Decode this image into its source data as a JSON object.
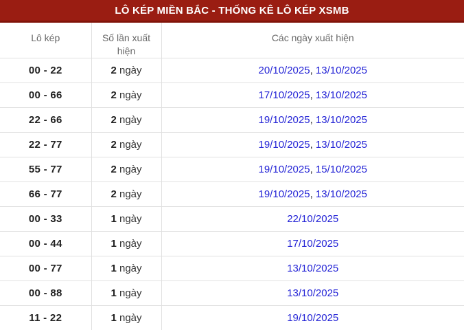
{
  "header": {
    "title": "LÔ KÉP MIỀN BẮC - THỐNG KÊ LÔ KÉP XSMB"
  },
  "table": {
    "columns": [
      {
        "label": "Lô kép"
      },
      {
        "label": "Số lần xuất hiện"
      },
      {
        "label": "Các ngày xuất hiện"
      }
    ],
    "unit": "ngày",
    "rows": [
      {
        "pair": "00 - 22",
        "count": "2",
        "dates": [
          "20/10/2025",
          "13/10/2025"
        ]
      },
      {
        "pair": "00 - 66",
        "count": "2",
        "dates": [
          "17/10/2025",
          "13/10/2025"
        ]
      },
      {
        "pair": "22 - 66",
        "count": "2",
        "dates": [
          "19/10/2025",
          "13/10/2025"
        ]
      },
      {
        "pair": "22 - 77",
        "count": "2",
        "dates": [
          "19/10/2025",
          "13/10/2025"
        ]
      },
      {
        "pair": "55 - 77",
        "count": "2",
        "dates": [
          "19/10/2025",
          "15/10/2025"
        ]
      },
      {
        "pair": "66 - 77",
        "count": "2",
        "dates": [
          "19/10/2025",
          "13/10/2025"
        ]
      },
      {
        "pair": "00 - 33",
        "count": "1",
        "dates": [
          "22/10/2025"
        ]
      },
      {
        "pair": "00 - 44",
        "count": "1",
        "dates": [
          "17/10/2025"
        ]
      },
      {
        "pair": "00 - 77",
        "count": "1",
        "dates": [
          "13/10/2025"
        ]
      },
      {
        "pair": "00 - 88",
        "count": "1",
        "dates": [
          "13/10/2025"
        ]
      },
      {
        "pair": "11 - 22",
        "count": "1",
        "dates": [
          "19/10/2025"
        ]
      }
    ]
  },
  "colors": {
    "header_bg": "#9a1d12",
    "header_edge": "#801409",
    "header_text": "#ffffff",
    "column_header_text": "#666666",
    "row_divider": "#e0e0e0",
    "pair_text": "#212121",
    "link_blue": "#2424d6"
  }
}
